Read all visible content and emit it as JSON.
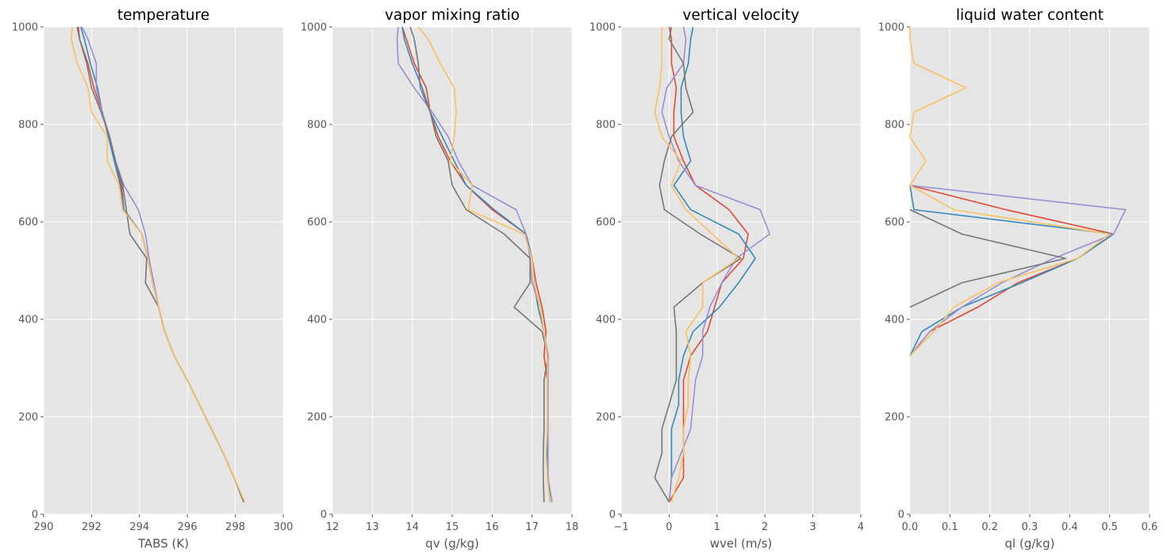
{
  "style": {
    "panel_background": "#e5e5e5",
    "grid_color": "#ffffff",
    "text_color": "#555555",
    "series_colors": [
      "#e24a33",
      "#348abd",
      "#988ed5",
      "#777777",
      "#fbc15e"
    ]
  },
  "chart_data": [
    {
      "type": "line",
      "title": "temperature",
      "xlabel": "TABS (K)",
      "ylabel": "",
      "xlim": [
        290,
        300
      ],
      "ylim": [
        0,
        1000
      ],
      "xticks": [
        "290",
        "292",
        "294",
        "296",
        "298",
        "300"
      ],
      "yticks": [
        "0",
        "200",
        "400",
        "600",
        "800",
        "1000"
      ],
      "grid": true,
      "y": [
        25,
        75,
        125,
        175,
        225,
        275,
        325,
        375,
        425,
        475,
        525,
        575,
        625,
        675,
        725,
        775,
        825,
        875,
        925,
        975,
        1000
      ],
      "series": [
        {
          "color": "#e24a33",
          "values": [
            298.35,
            297.95,
            297.5,
            297.0,
            296.5,
            296.0,
            295.45,
            295.05,
            294.8,
            294.55,
            294.35,
            294.1,
            293.35,
            293.25,
            293.0,
            292.75,
            292.45,
            292.1,
            291.85,
            291.5,
            291.45
          ]
        },
        {
          "color": "#348abd",
          "values": [
            298.35,
            297.95,
            297.5,
            297.0,
            296.5,
            296.0,
            295.45,
            295.05,
            294.8,
            294.55,
            294.35,
            294.1,
            293.35,
            293.2,
            292.95,
            292.7,
            292.45,
            292.25,
            291.95,
            291.7,
            291.55
          ]
        },
        {
          "color": "#988ed5",
          "values": [
            298.35,
            297.95,
            297.5,
            297.0,
            296.5,
            296.0,
            295.45,
            295.05,
            294.8,
            294.6,
            294.4,
            294.25,
            293.95,
            293.35,
            293.0,
            292.75,
            292.45,
            292.2,
            292.2,
            291.85,
            291.6
          ]
        },
        {
          "color": "#777777",
          "values": [
            298.35,
            297.95,
            297.5,
            297.0,
            296.5,
            296.0,
            295.45,
            295.05,
            294.8,
            294.25,
            294.3,
            293.6,
            293.45,
            293.3,
            293.0,
            292.75,
            292.4,
            292.0,
            291.8,
            291.5,
            291.4
          ]
        },
        {
          "color": "#fbc15e",
          "values": [
            298.4,
            297.95,
            297.5,
            297.0,
            296.5,
            296.0,
            295.45,
            295.05,
            294.8,
            294.55,
            294.35,
            294.1,
            293.3,
            293.15,
            292.65,
            292.65,
            292.0,
            291.85,
            291.4,
            291.15,
            291.2
          ]
        }
      ]
    },
    {
      "type": "line",
      "title": "vapor mixing ratio",
      "xlabel": "qv (g/kg)",
      "ylabel": "",
      "xlim": [
        12,
        18
      ],
      "ylim": [
        0,
        1000
      ],
      "xticks": [
        "12",
        "13",
        "14",
        "15",
        "16",
        "17",
        "18"
      ],
      "yticks": [
        "0",
        "200",
        "400",
        "600",
        "800",
        "1000"
      ],
      "grid": true,
      "y": [
        25,
        75,
        125,
        175,
        225,
        275,
        325,
        375,
        425,
        475,
        525,
        575,
        625,
        675,
        725,
        775,
        825,
        875,
        925,
        975,
        1000
      ],
      "series": [
        {
          "color": "#e24a33",
          "values": [
            17.45,
            17.4,
            17.38,
            17.38,
            17.38,
            17.38,
            17.3,
            17.35,
            17.25,
            17.1,
            17.0,
            16.85,
            16.0,
            15.35,
            14.95,
            14.65,
            14.45,
            14.35,
            14.05,
            13.85,
            13.75
          ]
        },
        {
          "color": "#348abd",
          "values": [
            17.45,
            17.4,
            17.38,
            17.4,
            17.38,
            17.38,
            17.4,
            17.3,
            17.15,
            17.05,
            17.0,
            16.85,
            16.05,
            15.35,
            15.05,
            14.75,
            14.45,
            14.25,
            14.0,
            13.8,
            13.75
          ]
        },
        {
          "color": "#988ed5",
          "values": [
            17.5,
            17.4,
            17.4,
            17.4,
            17.4,
            17.4,
            17.4,
            17.3,
            17.2,
            17.0,
            16.95,
            16.85,
            16.6,
            15.5,
            15.15,
            14.9,
            14.5,
            14.05,
            13.65,
            13.62,
            13.65
          ]
        },
        {
          "color": "#777777",
          "values": [
            17.3,
            17.28,
            17.28,
            17.3,
            17.3,
            17.3,
            17.4,
            17.25,
            16.55,
            16.95,
            16.95,
            16.3,
            15.35,
            15.0,
            14.9,
            14.6,
            14.45,
            14.2,
            14.15,
            14.05,
            13.95
          ]
        },
        {
          "color": "#fbc15e",
          "values": [
            17.45,
            17.38,
            17.35,
            17.38,
            17.38,
            17.38,
            17.38,
            17.3,
            17.2,
            17.05,
            17.0,
            16.8,
            15.4,
            15.5,
            14.95,
            15.05,
            15.1,
            15.05,
            14.7,
            14.4,
            14.15
          ]
        }
      ]
    },
    {
      "type": "line",
      "title": "vertical velocity",
      "xlabel": "wvel (m/s)",
      "ylabel": "",
      "xlim": [
        -1,
        4
      ],
      "ylim": [
        0,
        1000
      ],
      "xticks": [
        "−1",
        "0",
        "1",
        "2",
        "3",
        "4"
      ],
      "yticks": [
        "0",
        "200",
        "400",
        "600",
        "800",
        "1000"
      ],
      "grid": true,
      "y": [
        25,
        75,
        125,
        175,
        225,
        275,
        325,
        375,
        425,
        475,
        525,
        575,
        625,
        675,
        725,
        775,
        825,
        875,
        925,
        975,
        1000
      ],
      "series": [
        {
          "color": "#e24a33",
          "values": [
            0.0,
            0.3,
            0.3,
            0.3,
            0.3,
            0.3,
            0.45,
            0.8,
            0.95,
            1.1,
            1.55,
            1.65,
            1.25,
            0.55,
            0.3,
            0.1,
            0.1,
            0.15,
            0.05,
            0.05,
            0.0
          ]
        },
        {
          "color": "#348abd",
          "values": [
            0.0,
            0.05,
            0.05,
            0.05,
            0.2,
            0.2,
            0.3,
            0.5,
            1.05,
            1.45,
            1.8,
            1.45,
            0.45,
            0.1,
            0.45,
            0.3,
            0.25,
            0.25,
            0.4,
            0.45,
            0.5
          ]
        },
        {
          "color": "#988ed5",
          "values": [
            0.0,
            0.05,
            0.25,
            0.45,
            0.5,
            0.55,
            0.7,
            0.7,
            0.85,
            1.1,
            1.4,
            2.1,
            1.9,
            0.55,
            0.2,
            0.0,
            -0.15,
            -0.05,
            0.3,
            0.35,
            0.3
          ]
        },
        {
          "color": "#777777",
          "values": [
            0.0,
            -0.3,
            -0.15,
            -0.15,
            0.0,
            0.15,
            0.15,
            0.15,
            0.1,
            0.7,
            1.5,
            0.65,
            -0.1,
            -0.2,
            -0.1,
            0.05,
            0.5,
            0.35,
            0.3,
            0.0,
            0.05
          ]
        },
        {
          "color": "#fbc15e",
          "values": [
            0.05,
            0.2,
            0.3,
            0.3,
            0.4,
            0.4,
            0.45,
            0.35,
            0.7,
            0.7,
            1.45,
            0.9,
            0.35,
            0.05,
            0.25,
            -0.15,
            -0.3,
            -0.2,
            -0.15,
            -0.15,
            -0.15
          ]
        }
      ]
    },
    {
      "type": "line",
      "title": "liquid water content",
      "xlabel": "ql (g/kg)",
      "ylabel": "",
      "xlim": [
        0,
        0.6
      ],
      "ylim": [
        0,
        1000
      ],
      "xticks": [
        "0.0",
        "0.1",
        "0.2",
        "0.3",
        "0.4",
        "0.5",
        "0.6"
      ],
      "yticks": [
        "0",
        "200",
        "400",
        "600",
        "800",
        "1000"
      ],
      "grid": true,
      "series": [
        {
          "color": "#e24a33",
          "y": [
            325,
            375,
            425,
            475,
            525,
            575,
            625,
            675
          ],
          "values": [
            0.0,
            0.05,
            0.17,
            0.27,
            0.42,
            0.51,
            0.24,
            0.0
          ]
        },
        {
          "color": "#348abd",
          "y": [
            325,
            375,
            425,
            475,
            525,
            575,
            625,
            675
          ],
          "values": [
            0.0,
            0.03,
            0.13,
            0.28,
            0.42,
            0.51,
            0.01,
            0.0
          ]
        },
        {
          "color": "#988ed5",
          "y": [
            325,
            375,
            425,
            475,
            525,
            575,
            625,
            675
          ],
          "values": [
            0.0,
            0.05,
            0.13,
            0.23,
            0.36,
            0.51,
            0.54,
            0.0
          ]
        },
        {
          "color": "#777777",
          "y": [
            425,
            475,
            525,
            575,
            625
          ],
          "values": [
            0.0,
            0.13,
            0.39,
            0.13,
            0.0
          ]
        },
        {
          "color": "#fbc15e",
          "y": [
            325,
            375,
            425,
            475,
            525,
            550,
            575,
            625,
            675,
            725,
            775,
            825,
            875,
            925,
            975,
            1000
          ],
          "values": [
            0.0,
            0.06,
            0.11,
            0.22,
            0.42,
            0.46,
            0.5,
            0.11,
            0.0,
            0.04,
            0.0,
            0.01,
            0.14,
            0.01,
            0.0,
            0.0
          ]
        }
      ]
    }
  ]
}
